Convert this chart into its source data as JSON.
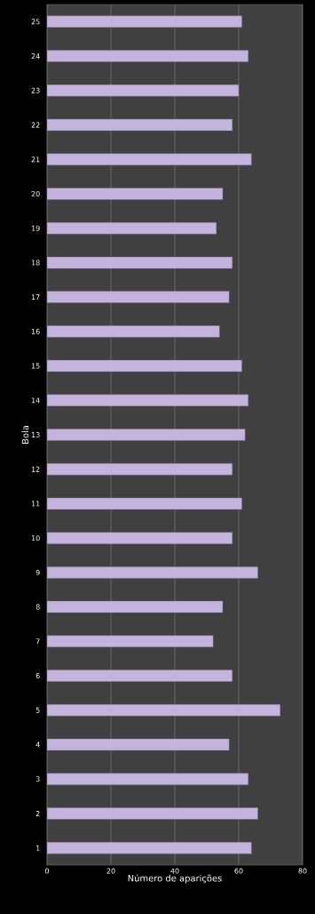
{
  "chart_data": {
    "type": "bar",
    "orientation": "horizontal",
    "xlabel": "Número de aparições",
    "ylabel": "Bola",
    "categories": [
      "25",
      "24",
      "23",
      "22",
      "21",
      "20",
      "19",
      "18",
      "17",
      "16",
      "15",
      "14",
      "13",
      "12",
      "11",
      "10",
      "9",
      "8",
      "7",
      "6",
      "5",
      "4",
      "3",
      "2",
      "1"
    ],
    "values": [
      61,
      63,
      60,
      58,
      64,
      55,
      53,
      58,
      57,
      54,
      61,
      63,
      62,
      58,
      61,
      58,
      66,
      55,
      52,
      58,
      73,
      57,
      63,
      66,
      64
    ],
    "color": "#c3b3dd",
    "xlim": [
      0,
      80
    ],
    "xticks": [
      0,
      20,
      40,
      60,
      80
    ],
    "grid": "x"
  }
}
